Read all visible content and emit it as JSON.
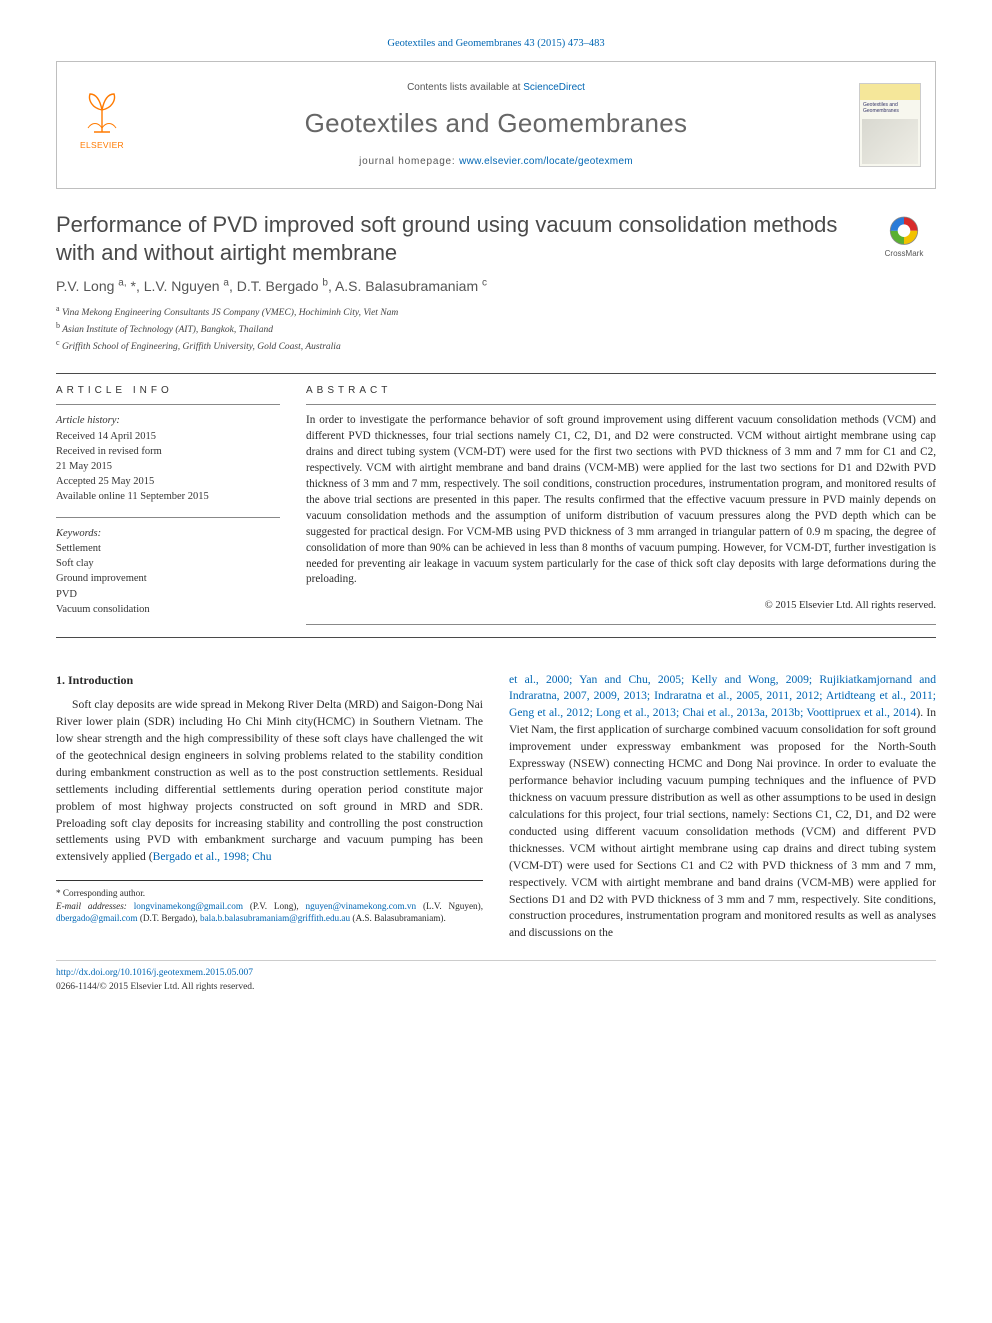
{
  "citation": "Geotextiles and Geomembranes 43 (2015) 473–483",
  "header": {
    "contents_prefix": "Contents lists available at ",
    "contents_link": "ScienceDirect",
    "journal": "Geotextiles and Geomembranes",
    "homepage_prefix": "journal homepage: ",
    "homepage_url": "www.elsevier.com/locate/geotexmem",
    "publisher_word": "ELSEVIER",
    "cover_title": "Geotextiles and Geomembranes"
  },
  "colors": {
    "link": "#0066b3",
    "journal_grey": "#666666",
    "title_grey": "#4a4a4a",
    "elsevier_orange": "#ff7a00",
    "rule": "#4a4a4a",
    "border": "#bfbfbf"
  },
  "crossmark_label": "CrossMark",
  "title": "Performance of PVD improved soft ground using vacuum consolidation methods with and without airtight membrane",
  "authors_html": "P.V. Long <sup>a,</sup> <span class='star'>*</span>, L.V. Nguyen <sup>a</sup>, D.T. Bergado <sup>b</sup>, A.S. Balasubramaniam <sup>c</sup>",
  "affiliations": [
    {
      "tag": "a",
      "text": "Vina Mekong Engineering Consultants JS Company (VMEC), Hochiminh City, Viet Nam"
    },
    {
      "tag": "b",
      "text": "Asian Institute of Technology (AIT), Bangkok, Thailand"
    },
    {
      "tag": "c",
      "text": "Griffith School of Engineering, Griffith University, Gold Coast, Australia"
    }
  ],
  "info": {
    "heading": "ARTICLE INFO",
    "history_label": "Article history:",
    "history": [
      "Received 14 April 2015",
      "Received in revised form",
      "21 May 2015",
      "Accepted 25 May 2015",
      "Available online 11 September 2015"
    ],
    "keywords_label": "Keywords:",
    "keywords": [
      "Settlement",
      "Soft clay",
      "Ground improvement",
      "PVD",
      "Vacuum consolidation"
    ]
  },
  "abstract": {
    "heading": "ABSTRACT",
    "text": "In order to investigate the performance behavior of soft ground improvement using different vacuum consolidation methods (VCM) and different PVD thicknesses, four trial sections namely C1, C2, D1, and D2 were constructed. VCM without airtight membrane using cap drains and direct tubing system (VCM-DT) were used for the first two sections with PVD thickness of 3 mm and 7 mm for C1 and C2, respectively. VCM with airtight membrane and band drains (VCM-MB) were applied for the last two sections for D1 and D2with PVD thickness of 3 mm and 7 mm, respectively. The soil conditions, construction procedures, instrumentation program, and monitored results of the above trial sections are presented in this paper. The results confirmed that the effective vacuum pressure in PVD mainly depends on vacuum consolidation methods and the assumption of uniform distribution of vacuum pressures along the PVD depth which can be suggested for practical design. For VCM-MB using PVD thickness of 3 mm arranged in triangular pattern of 0.9 m spacing, the degree of consolidation of more than 90% can be achieved in less than 8 months of vacuum pumping. However, for VCM-DT, further investigation is needed for preventing air leakage in vacuum system particularly for the case of thick soft clay deposits with large deformations during the preloading.",
    "copyright": "© 2015 Elsevier Ltd. All rights reserved."
  },
  "section_heading": "1. Introduction",
  "intro_text_before_cite": "Soft clay deposits are wide spread in Mekong River Delta (MRD) and Saigon-Dong Nai River lower plain (SDR) including Ho Chi Minh city(HCMC) in Southern Vietnam. The low shear strength and the high compressibility of these soft clays have challenged the wit of the geotechnical design engineers in solving problems related to the stability condition during embankment construction as well as to the post construction settlements. Residual settlements including differential settlements during operation period constitute major problem of most highway projects constructed on soft ground in MRD and SDR. Preloading soft clay deposits for increasing stability and controlling the post construction settlements using PVD with embankment surcharge and vacuum pumping has been extensively applied (",
  "inline_citation_1": "Bergado et al., 1998; Chu",
  "inline_citation_2": "et al., 2000; Yan and Chu, 2005; Kelly and Wong, 2009; Rujikiatkamjornand and Indraratna, 2007, 2009, 2013; Indraratna et al., 2005, 2011, 2012; Artidteang et al., 2011; Geng et al., 2012; Long et al., 2013; Chai et al., 2013a, 2013b; Voottipruex et al., 2014",
  "intro_text_after_cite": "). In Viet Nam, the first application of surcharge combined vacuum consolidation for soft ground improvement under expressway embankment was proposed for the North-South Expressway (NSEW) connecting HCMC and Dong Nai province. In order to evaluate the performance behavior including vacuum pumping techniques and the influence of PVD thickness on vacuum pressure distribution as well as other assumptions to be used in design calculations for this project, four trial sections, namely: Sections C1, C2, D1, and D2 were conducted using different vacuum consolidation methods (VCM) and different PVD thicknesses. VCM without airtight membrane using cap drains and direct tubing system (VCM-DT) were used for Sections C1 and C2 with PVD thickness of 3 mm and 7 mm, respectively. VCM with airtight membrane and band drains (VCM-MB) were applied for Sections D1 and D2 with PVD thickness of 3 mm and 7 mm, respectively. Site conditions, construction procedures, instrumentation program and monitored results as well as analyses and discussions on the",
  "corresponding": {
    "star_label": "* Corresponding author.",
    "email_label": "E-mail addresses:",
    "emails": [
      {
        "addr": "longvinamekong@gmail.com",
        "who": "(P.V. Long),"
      },
      {
        "addr": "nguyen@vinamekong.com.vn",
        "who": "(L.V. Nguyen),"
      },
      {
        "addr": "dbergado@gmail.com",
        "who": "(D.T. Bergado),"
      },
      {
        "addr": "bala.b.balasubramaniam@griffith.edu.au",
        "who": "(A.S. Balasubramaniam)."
      }
    ]
  },
  "footer": {
    "doi": "http://dx.doi.org/10.1016/j.geotexmem.2015.05.007",
    "issn_line": "0266-1144/© 2015 Elsevier Ltd. All rights reserved."
  }
}
